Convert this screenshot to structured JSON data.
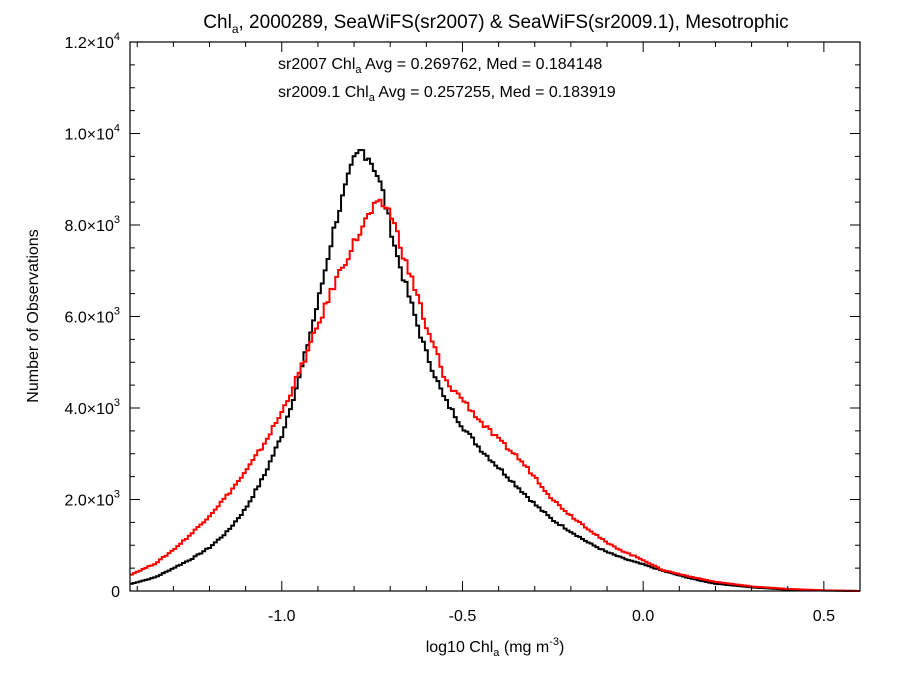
{
  "chart_data": {
    "type": "line",
    "style": "step-histogram",
    "title": {
      "prefix": "Chl",
      "prefix_sub": "a",
      "rest": ", 2000289, SeaWiFS(sr2007) & SeaWiFS(sr2009.1), Mesotrophic"
    },
    "xlabel": {
      "prefix": "log10 Chl",
      "sub": "a",
      "mid": " (mg m",
      "sup": "-3",
      "suffix": ")"
    },
    "ylabel": "Number of Observations",
    "xlim": [
      -1.42,
      0.6
    ],
    "ylim": [
      0,
      12000
    ],
    "x_ticks": [
      {
        "value": -1.0,
        "label": "-1.0"
      },
      {
        "value": -0.5,
        "label": "-0.5"
      },
      {
        "value": 0.0,
        "label": "0.0"
      },
      {
        "value": 0.5,
        "label": "0.5"
      }
    ],
    "x_minor_step": 0.1,
    "y_ticks": [
      {
        "value": 0,
        "mantissa": "0",
        "exp": ""
      },
      {
        "value": 2000,
        "mantissa": "2.0×10",
        "exp": "3"
      },
      {
        "value": 4000,
        "mantissa": "4.0×10",
        "exp": "3"
      },
      {
        "value": 6000,
        "mantissa": "6.0×10",
        "exp": "3"
      },
      {
        "value": 8000,
        "mantissa": "8.0×10",
        "exp": "3"
      },
      {
        "value": 10000,
        "mantissa": "1.0×10",
        "exp": "4"
      },
      {
        "value": 12000,
        "mantissa": "1.2×10",
        "exp": "4"
      }
    ],
    "y_minor_step": 500,
    "grid": false,
    "annotations": [
      {
        "series": "sr2007",
        "color": "#000000",
        "before_sub": "sr2007 Chl",
        "sub": "a",
        "after_sub": " Avg = 0.269762, Med = 0.184148"
      },
      {
        "series": "sr2009.1",
        "color": "#ff0000",
        "before_sub": "sr2009.1 Chl",
        "sub": "a",
        "after_sub": " Avg = 0.257255, Med = 0.183919"
      }
    ],
    "series": [
      {
        "color": "#000000",
        "x": [
          -1.42,
          -1.35,
          -1.3,
          -1.25,
          -1.2,
          -1.15,
          -1.1,
          -1.05,
          -1.0,
          -0.95,
          -0.9,
          -0.85,
          -0.82,
          -0.8,
          -0.78,
          -0.76,
          -0.74,
          -0.72,
          -0.7,
          -0.68,
          -0.65,
          -0.62,
          -0.6,
          -0.57,
          -0.55,
          -0.5,
          -0.45,
          -0.4,
          -0.35,
          -0.3,
          -0.25,
          -0.2,
          -0.15,
          -0.1,
          -0.05,
          0.0,
          0.05,
          0.1,
          0.15,
          0.2,
          0.3,
          0.4,
          0.5,
          0.6
        ],
        "values": [
          150,
          300,
          500,
          700,
          950,
          1300,
          1800,
          2500,
          3400,
          4700,
          6300,
          8100,
          8900,
          9400,
          9650,
          9500,
          9200,
          8700,
          8000,
          7300,
          6500,
          5700,
          5200,
          4600,
          4200,
          3600,
          3100,
          2700,
          2300,
          1900,
          1550,
          1300,
          1050,
          850,
          700,
          580,
          450,
          340,
          240,
          160,
          80,
          30,
          10,
          0
        ]
      },
      {
        "color": "#ff0000",
        "x": [
          -1.42,
          -1.35,
          -1.3,
          -1.25,
          -1.2,
          -1.15,
          -1.1,
          -1.05,
          -1.0,
          -0.95,
          -0.9,
          -0.85,
          -0.8,
          -0.78,
          -0.76,
          -0.74,
          -0.72,
          -0.7,
          -0.68,
          -0.65,
          -0.62,
          -0.6,
          -0.57,
          -0.55,
          -0.5,
          -0.45,
          -0.4,
          -0.35,
          -0.3,
          -0.25,
          -0.2,
          -0.15,
          -0.1,
          -0.05,
          0.0,
          0.05,
          0.1,
          0.15,
          0.2,
          0.3,
          0.4,
          0.5,
          0.6
        ],
        "values": [
          350,
          600,
          900,
          1250,
          1650,
          2100,
          2600,
          3200,
          3900,
          4800,
          5800,
          6800,
          7600,
          7900,
          8200,
          8400,
          8450,
          8300,
          7800,
          7000,
          6400,
          5700,
          5200,
          4600,
          4200,
          3700,
          3300,
          2950,
          2500,
          2000,
          1650,
          1350,
          1050,
          850,
          680,
          470,
          370,
          280,
          200,
          100,
          45,
          15,
          0
        ]
      }
    ]
  }
}
